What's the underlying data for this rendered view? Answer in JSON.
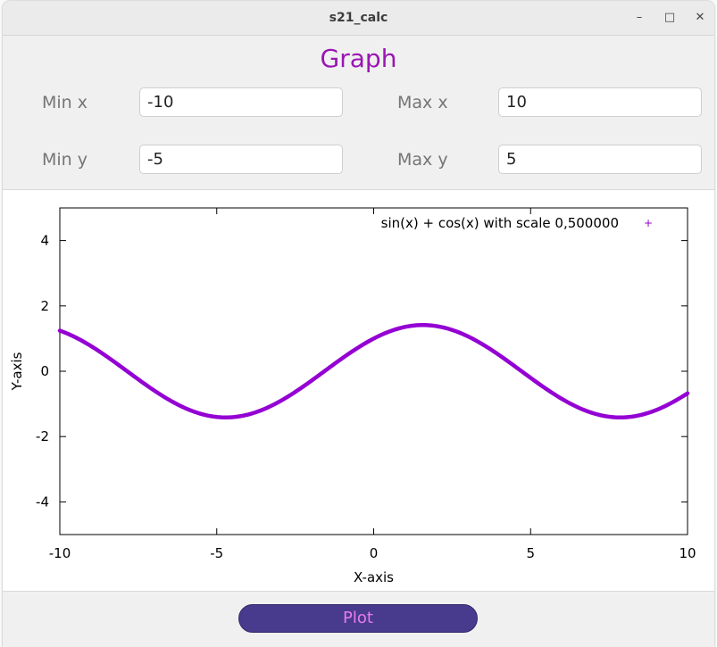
{
  "window": {
    "title": "s21_calc",
    "minimize_glyph": "–",
    "maximize_glyph": "□",
    "close_glyph": "✕"
  },
  "heading": "Graph",
  "range": {
    "min_x_label": "Min x",
    "min_x_value": "-10",
    "max_x_label": "Max x",
    "max_x_value": "10",
    "min_y_label": "Min y",
    "min_y_value": "-5",
    "max_y_label": "Max y",
    "max_y_value": "5"
  },
  "plot_button": "Plot",
  "colors": {
    "accent": "#9a16b3",
    "series": "#9400d3",
    "button_bg": "#483a8c",
    "button_text": "#e87bf0"
  },
  "chart_data": {
    "type": "line",
    "function": "sin(x) + cos(x)",
    "scale": 0.5,
    "xlim": [
      -10,
      10
    ],
    "ylim": [
      -5,
      5
    ],
    "xticks": [
      "-10",
      "-5",
      "0",
      "5",
      "10"
    ],
    "yticks": [
      "-4",
      "-2",
      "0",
      "2",
      "4"
    ],
    "xlabel": "X-axis",
    "ylabel": "Y-axis",
    "legend": "top-right",
    "grid": false,
    "series": [
      {
        "name": "sin(x) + cos(x) with scale 0,500000",
        "x_step": 0.05
      }
    ]
  }
}
